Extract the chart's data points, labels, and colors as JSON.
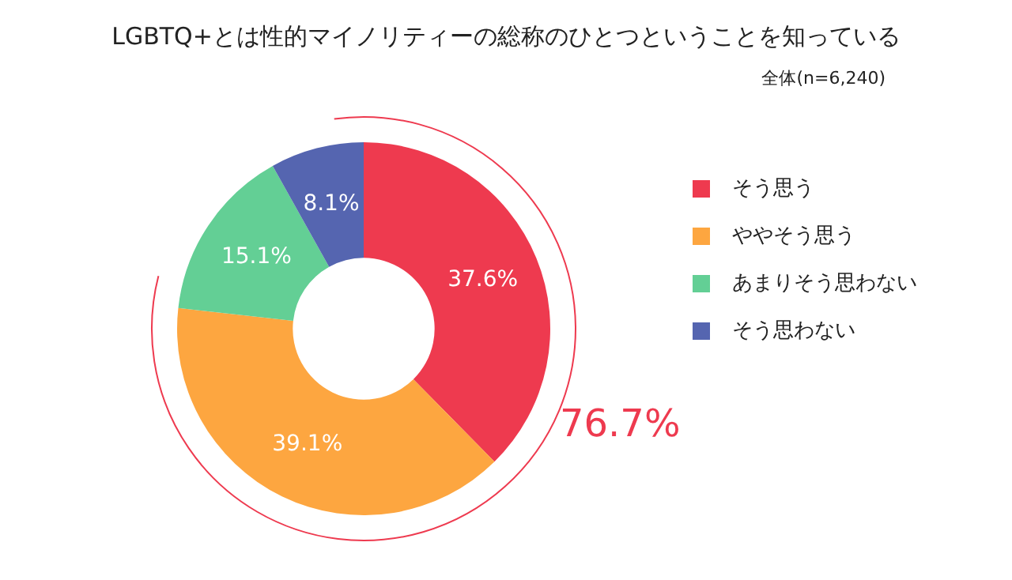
{
  "chart_data": {
    "type": "donut",
    "title": "LGBTQ+とは性的マイノリティーの総称のひとつということを知っている",
    "subtitle": "全体(n=6,240)",
    "categories": [
      "そう思う",
      "ややそう思う",
      "あまりそう思わない",
      "そう思わない"
    ],
    "values": [
      37.6,
      39.1,
      15.1,
      8.1
    ],
    "colors": [
      "#ee3a4f",
      "#fda640",
      "#63cf95",
      "#5565b0"
    ],
    "value_labels": [
      "37.6%",
      "39.1%",
      "15.1%",
      "8.1%"
    ],
    "legend": "right",
    "annotations": [
      "76.7%"
    ]
  }
}
